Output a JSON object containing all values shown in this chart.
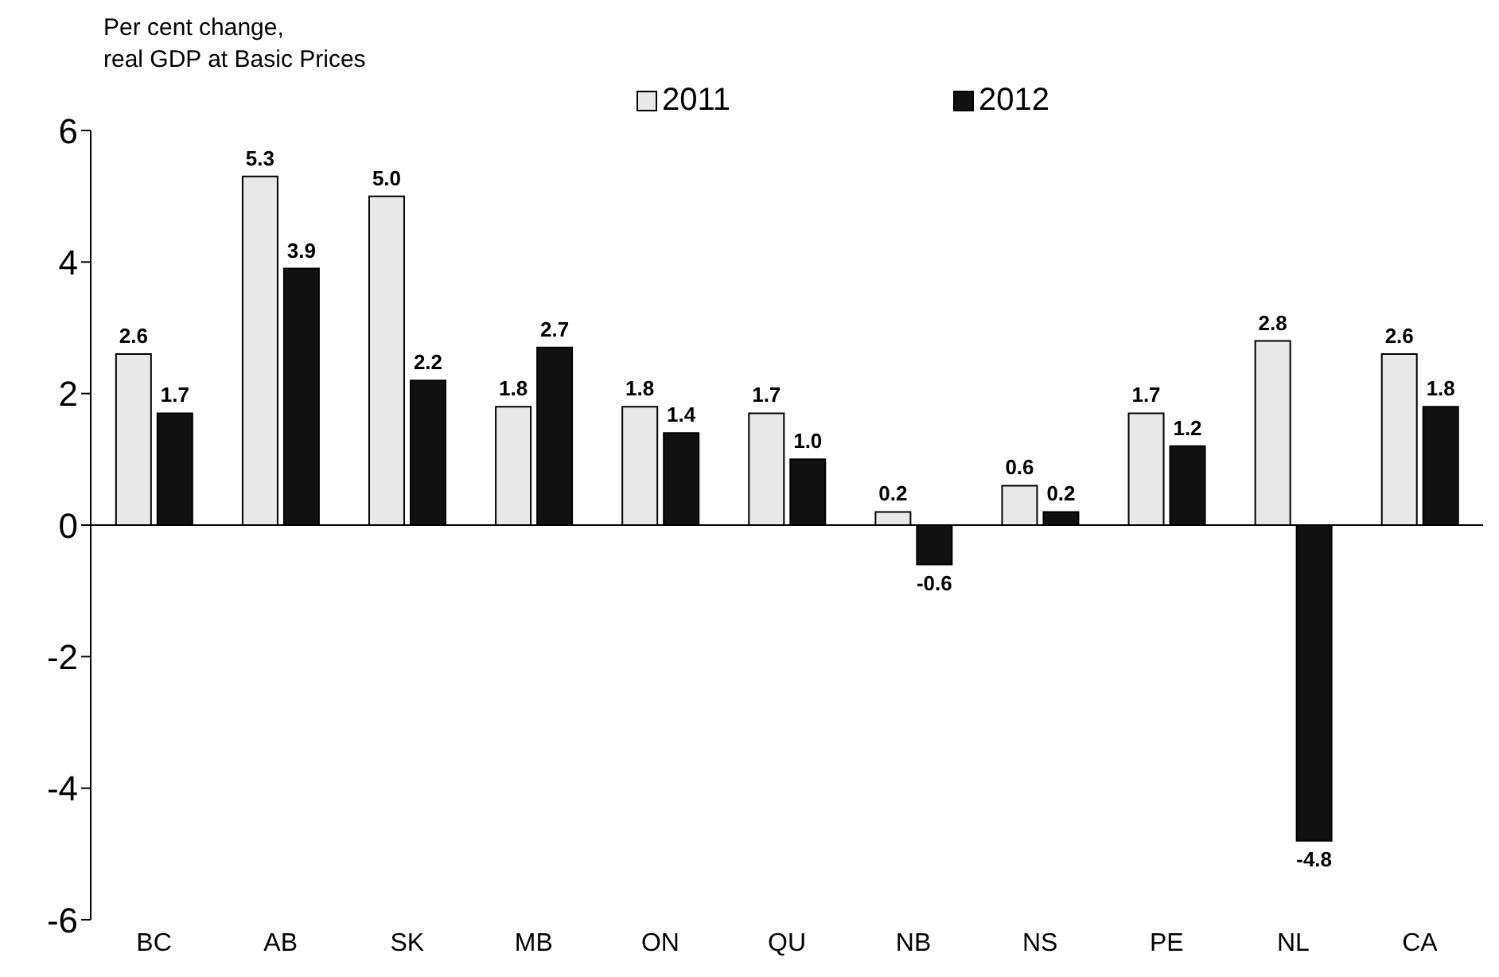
{
  "chart_data": {
    "type": "bar",
    "ylabel": "Per cent change,\nreal GDP at Basic Prices",
    "categories": [
      "BC",
      "AB",
      "SK",
      "MB",
      "ON",
      "QU",
      "NB",
      "NS",
      "PE",
      "NL",
      "CA"
    ],
    "series": [
      {
        "name": "2011",
        "color": "#e8e8e8",
        "values": [
          2.6,
          5.3,
          5.0,
          1.8,
          1.8,
          1.7,
          0.2,
          0.6,
          1.7,
          2.8,
          2.6
        ],
        "value_labels": [
          "2.6",
          "5.3",
          "5.0",
          "1.8",
          "1.8",
          "1.7",
          "0.2",
          "0.6",
          "1.7",
          "2.8",
          "2.6"
        ]
      },
      {
        "name": "2012",
        "color": "#111111",
        "values": [
          1.7,
          3.9,
          2.2,
          2.7,
          1.4,
          1.0,
          -0.6,
          0.2,
          1.2,
          -4.8,
          1.8
        ],
        "value_labels": [
          "1.7",
          "3.9",
          "2.2",
          "2.7",
          "1.4",
          "1.0",
          "-0.6",
          "0.2",
          "1.2",
          "-4.8",
          "1.8"
        ]
      }
    ],
    "ylim": [
      -6,
      6
    ],
    "yticks": [
      -6,
      -4,
      -2,
      0,
      2,
      4,
      6
    ],
    "legend": "top",
    "ref_lines": [
      {
        "axis": "y",
        "value": 0
      }
    ]
  }
}
